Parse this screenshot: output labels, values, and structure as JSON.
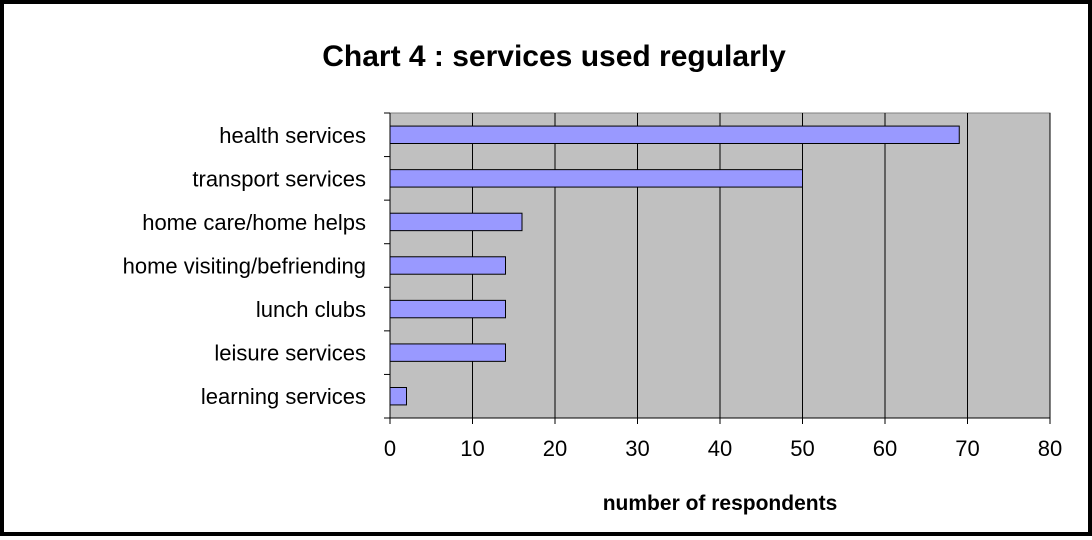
{
  "chart_data": {
    "type": "bar",
    "orientation": "horizontal",
    "title": "Chart 4 : services used regularly",
    "xlabel": "number of respondents",
    "ylabel": "",
    "categories": [
      "health services",
      "transport services",
      "home care/home helps",
      "home visiting/befriending",
      "lunch clubs",
      "leisure services",
      "learning services"
    ],
    "values": [
      69,
      50,
      16,
      14,
      14,
      14,
      2
    ],
    "xlim": [
      0,
      80
    ],
    "x_ticks": [
      "0",
      "10",
      "20",
      "30",
      "40",
      "50",
      "60",
      "70",
      "80"
    ],
    "grid": "vertical",
    "legend": "none",
    "colors": {
      "bar_fill": "#9999ff",
      "bar_stroke": "#000000",
      "plot_background": "#c0c0c0",
      "gridline": "#000000",
      "frame": "#000000"
    }
  }
}
